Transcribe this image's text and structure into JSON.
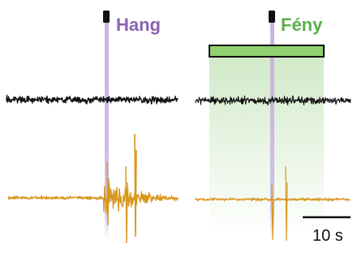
{
  "labels": {
    "sound": "Hang",
    "light": "Fény",
    "scale": "10 s"
  },
  "colors": {
    "sound": "#8b63b0",
    "sound_line": "#c9b3e0",
    "light": "#5aae4a",
    "light_bar_fill": "#8fd16f",
    "light_shade": "#cfe9c6",
    "trace_black": "#111111",
    "trace_orange": "#d8961e"
  }
}
